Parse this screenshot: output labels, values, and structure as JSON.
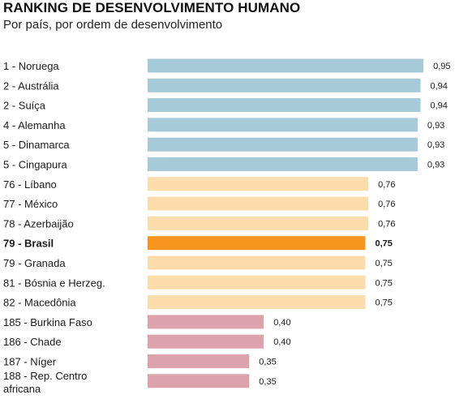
{
  "header": {
    "title": "RANKING DE DESENVOLVIMENTO HUMANO",
    "subtitle": "Por país, por ordem de desenvolvimento"
  },
  "colors": {
    "top": "#a6cad8",
    "middle": "#fddcab",
    "highlight": "#f7941d",
    "bottom": "#dca3ae"
  },
  "chart_data": {
    "type": "bar",
    "orientation": "horizontal",
    "title": "RANKING DE DESENVOLVIMENTO HUMANO",
    "subtitle": "Por país, por ordem de desenvolvimento",
    "grid": false,
    "xlim": [
      0,
      0.95
    ],
    "categories": [
      "1 - Noruega",
      "2 - Austrália",
      "2 - Suíça",
      "4 - Alemanha",
      "5 - Dinamarca",
      "5 - Cingapura",
      "76 - Líbano",
      "77 - México",
      "78 - Azerbaijão",
      "79 - Brasil",
      "79 - Granada",
      "81 - Bósnia e Herzeg.",
      "82 - Macedônia",
      "185 - Burkina Faso",
      "186 - Chade",
      "187 - Níger",
      "188 - Rep. Centro africana"
    ],
    "values": [
      0.95,
      0.94,
      0.94,
      0.93,
      0.93,
      0.93,
      0.76,
      0.76,
      0.76,
      0.75,
      0.75,
      0.75,
      0.75,
      0.4,
      0.4,
      0.35,
      0.35
    ],
    "value_labels": [
      "0,95",
      "0,94",
      "0,94",
      "0,93",
      "0,93",
      "0,93",
      "0,76",
      "0,76",
      "0,76",
      "0,75",
      "0,75",
      "0,75",
      "0,75",
      "0,40",
      "0,40",
      "0,35",
      "0,35"
    ],
    "groups": [
      "top",
      "top",
      "top",
      "top",
      "top",
      "top",
      "middle",
      "middle",
      "middle",
      "highlight",
      "middle",
      "middle",
      "middle",
      "bottom",
      "bottom",
      "bottom",
      "bottom"
    ],
    "highlighted": "79 - Brasil"
  }
}
